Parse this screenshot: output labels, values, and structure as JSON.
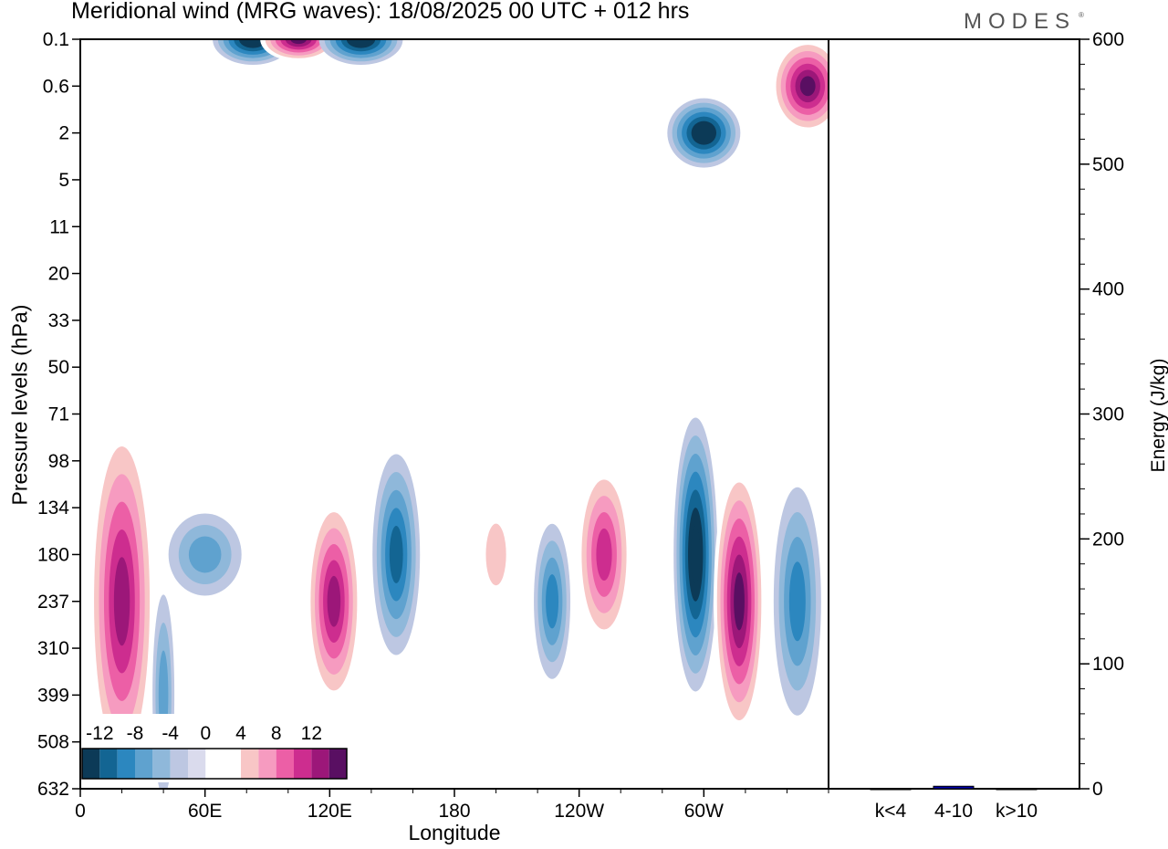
{
  "header": {
    "title": "Meridional wind (MRG waves):  18/08/2025  00 UTC  + 012 hrs",
    "brand": "MODES",
    "brand_mark": "®"
  },
  "chart_data": [
    {
      "type": "heatmap",
      "title": "Meridional wind (MRG waves):  18/08/2025  00 UTC  + 012 hrs",
      "xlabel": "Longitude",
      "ylabel": "Pressure levels (hPa)",
      "x_ticks": [
        "0",
        "60E",
        "120E",
        "180",
        "120W",
        "60W"
      ],
      "y_ticks": [
        "0.1",
        "0.6",
        "2",
        "5",
        "11",
        "20",
        "33",
        "50",
        "71",
        "98",
        "134",
        "180",
        "237",
        "310",
        "399",
        "508",
        "632"
      ],
      "colorbar": {
        "labels": [
          "-12",
          "-8",
          "-4",
          "0",
          "4",
          "8",
          "12"
        ],
        "levels": [
          -14,
          -12,
          -10,
          -8,
          -6,
          -4,
          -2,
          0,
          2,
          4,
          6,
          8,
          10,
          12,
          14
        ],
        "colors": [
          "#0c3a57",
          "#136593",
          "#2c87bf",
          "#5fa2cf",
          "#8fb8da",
          "#bdc7e2",
          "#dadbed",
          "#ffffff",
          "#ffffff",
          "#f8c6c6",
          "#f69bc0",
          "#ec5fa6",
          "#cd2d8f",
          "#9c1779",
          "#590f62"
        ]
      },
      "features": [
        {
          "lon": 20,
          "level": "237",
          "value": 13
        },
        {
          "lon": 40,
          "level": "399",
          "value": -6
        },
        {
          "lon": 60,
          "level": "180",
          "value": -6
        },
        {
          "lon": 122,
          "level": "237",
          "value": 13
        },
        {
          "lon": 152,
          "level": "180",
          "value": -11
        },
        {
          "lon": 200,
          "level": "180",
          "value": 5
        },
        {
          "lon": 227,
          "level": "237",
          "value": -8
        },
        {
          "lon": 252,
          "level": "180",
          "value": 11
        },
        {
          "lon": 296,
          "level": "180",
          "value": -15
        },
        {
          "lon": 317,
          "level": "237",
          "value": 15
        },
        {
          "lon": 345,
          "level": "237",
          "value": -9
        },
        {
          "lon": 83,
          "level": "0.1",
          "value": -15
        },
        {
          "lon": 105,
          "level": "0.1",
          "value": 15
        },
        {
          "lon": 135,
          "level": "0.1",
          "value": -14
        },
        {
          "lon": 300,
          "level": "2",
          "value": -14
        },
        {
          "lon": 350,
          "level": "0.6",
          "value": 15
        }
      ]
    },
    {
      "type": "bar",
      "categories": [
        "k<4",
        "4-10",
        "k>10"
      ],
      "values": [
        0,
        2,
        0
      ],
      "ylabel": "Energy (J/kg)",
      "ylim": [
        0,
        600
      ],
      "y_ticks": [
        "0",
        "100",
        "200",
        "300",
        "400",
        "500",
        "600"
      ],
      "bar_color": "#0000aa"
    }
  ]
}
